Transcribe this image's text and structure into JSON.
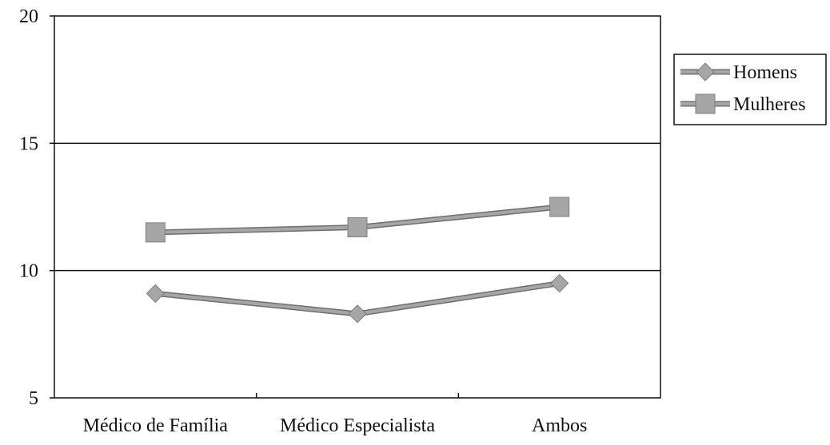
{
  "chart_data": {
    "type": "line",
    "title": "",
    "xlabel": "",
    "ylabel": "",
    "categories": [
      "Médico de Família",
      "Médico Especialista",
      "Ambos"
    ],
    "ylim": [
      5,
      20
    ],
    "yticks": [
      5,
      10,
      15,
      20
    ],
    "grid": "horizontal",
    "legend": "right",
    "series": [
      {
        "name": "Homens",
        "marker": "diamond",
        "color": "#a6a6a6",
        "values": [
          9.1,
          8.3,
          9.5
        ]
      },
      {
        "name": "Mulheres",
        "marker": "square",
        "color": "#a6a6a6",
        "values": [
          11.5,
          11.7,
          12.5
        ]
      }
    ]
  }
}
